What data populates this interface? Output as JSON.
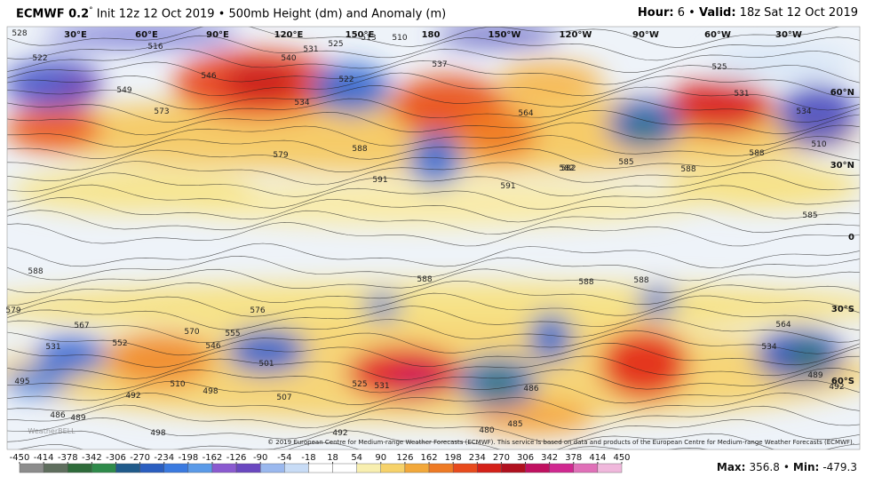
{
  "header": {
    "model": "ECMWF 0.2",
    "degree": "°",
    "init": "Init 12z 12 Oct 2019 • 500mb Height (dm) and Anomaly (m)",
    "hour_label": "Hour:",
    "hour": "6",
    "separator": "•",
    "valid_label": "Valid:",
    "valid": "18z Sat 12 Oct 2019"
  },
  "map": {
    "lon_labels": [
      "30°E",
      "60°E",
      "90°E",
      "120°E",
      "150°E",
      "180",
      "150°W",
      "120°W",
      "90°W",
      "60°W",
      "30°W"
    ],
    "lat_labels": [
      "60°N",
      "30°N",
      "0",
      "30°S",
      "60°S"
    ],
    "contour_labels": [
      528,
      522,
      516,
      540,
      546,
      531,
      525,
      522,
      534,
      537,
      513,
      510,
      564,
      579,
      588,
      591,
      591,
      582,
      585,
      588,
      525,
      531,
      534,
      510,
      588,
      585,
      588,
      588,
      576,
      570,
      567,
      552,
      531,
      546,
      555,
      588,
      501,
      525,
      531,
      486,
      495,
      489,
      492,
      498,
      510,
      498,
      507,
      486,
      492,
      480,
      485,
      534,
      489,
      492,
      573,
      549,
      582,
      579,
      588,
      564
    ],
    "watermark": "WeatherBELL",
    "copyright": "© 2019 European Centre for Medium-range Weather Forecasts (ECMWF). This service is based on data and products of the European Centre for Medium-range Weather Forecasts (ECMWF)."
  },
  "colorbar": {
    "ticks": [
      -450,
      -414,
      -378,
      -342,
      -306,
      -270,
      -234,
      -198,
      -162,
      -126,
      -90,
      -54,
      -18,
      18,
      54,
      90,
      126,
      162,
      198,
      234,
      270,
      306,
      342,
      378,
      414,
      450
    ]
  },
  "footer": {
    "max_label": "Max:",
    "max": 356.8,
    "separator": "•",
    "min_label": "Min:",
    "min": -479.3
  }
}
